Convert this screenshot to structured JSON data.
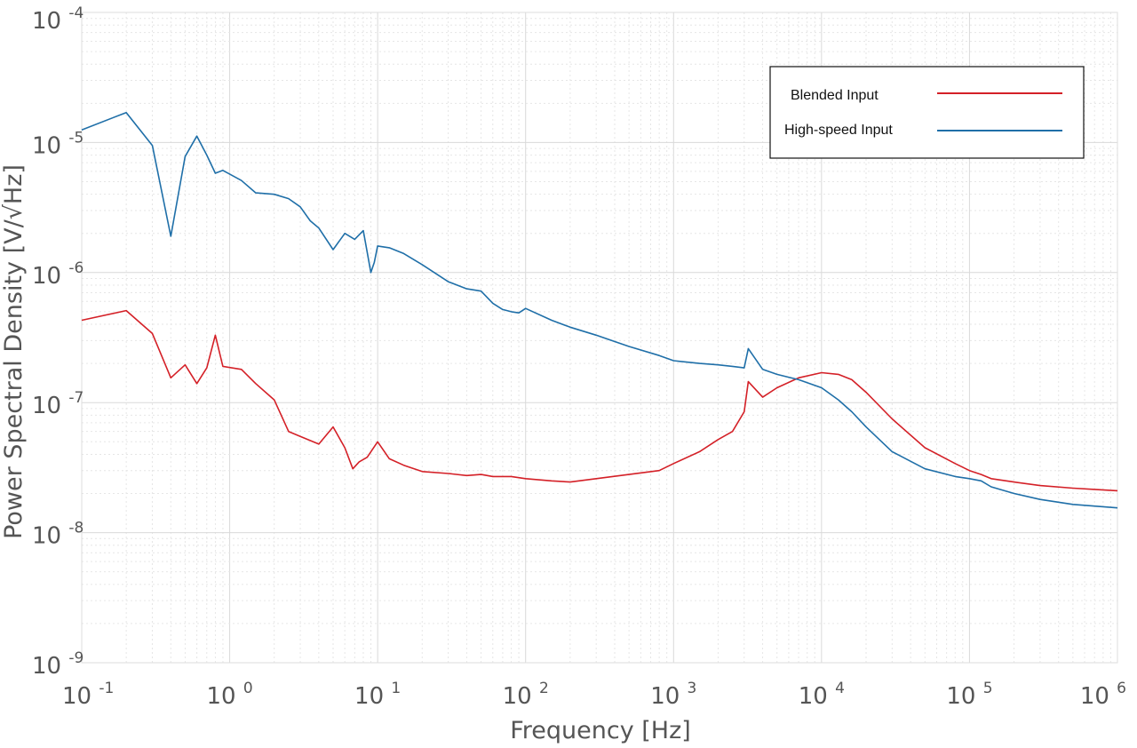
{
  "chart_data": {
    "type": "line",
    "title": "",
    "xlabel": "Frequency [Hz]",
    "ylabel": "Power Spectral Density [V/√Hz]",
    "xscale": "log",
    "yscale": "log",
    "xlim": [
      0.1,
      1000000
    ],
    "ylim": [
      1e-09,
      0.0001
    ],
    "grid": true,
    "legend_position": "top-right",
    "x_ticks": [
      {
        "base": "10",
        "exp": "-1"
      },
      {
        "base": "10",
        "exp": "0"
      },
      {
        "base": "10",
        "exp": "1"
      },
      {
        "base": "10",
        "exp": "2"
      },
      {
        "base": "10",
        "exp": "3"
      },
      {
        "base": "10",
        "exp": "4"
      },
      {
        "base": "10",
        "exp": "5"
      },
      {
        "base": "10",
        "exp": "6"
      }
    ],
    "y_ticks": [
      {
        "base": "10",
        "exp": "-9"
      },
      {
        "base": "10",
        "exp": "-8"
      },
      {
        "base": "10",
        "exp": "-7"
      },
      {
        "base": "10",
        "exp": "-6"
      },
      {
        "base": "10",
        "exp": "-5"
      },
      {
        "base": "10",
        "exp": "-4"
      }
    ],
    "series": [
      {
        "name": "Blended Input",
        "color": "#d42027",
        "x": [
          0.1,
          0.2,
          0.3,
          0.4,
          0.5,
          0.6,
          0.7,
          0.8,
          0.9,
          1.2,
          1.5,
          2.0,
          2.5,
          3.0,
          4.0,
          5.0,
          6.0,
          6.8,
          7.5,
          8.5,
          10,
          12,
          15,
          20,
          30,
          40,
          50,
          60,
          80,
          100,
          150,
          200,
          300,
          500,
          800,
          1000,
          1500,
          2000,
          2500,
          3000,
          3200,
          4000,
          5000,
          7000,
          10000,
          13000,
          16000,
          20000,
          30000,
          50000,
          80000,
          100000,
          120000,
          140000,
          200000,
          300000,
          500000,
          700000,
          1000000
        ],
        "values": [
          4.3e-07,
          5.1e-07,
          3.4e-07,
          1.55e-07,
          1.95e-07,
          1.4e-07,
          1.85e-07,
          3.3e-07,
          1.9e-07,
          1.8e-07,
          1.4e-07,
          1.05e-07,
          6e-08,
          5.5e-08,
          4.8e-08,
          6.5e-08,
          4.5e-08,
          3.1e-08,
          3.5e-08,
          3.8e-08,
          5e-08,
          3.7e-08,
          3.3e-08,
          2.95e-08,
          2.85e-08,
          2.75e-08,
          2.8e-08,
          2.7e-08,
          2.7e-08,
          2.6e-08,
          2.5e-08,
          2.45e-08,
          2.6e-08,
          2.8e-08,
          3e-08,
          3.4e-08,
          4.2e-08,
          5.2e-08,
          6e-08,
          8.5e-08,
          1.45e-07,
          1.1e-07,
          1.3e-07,
          1.55e-07,
          1.7e-07,
          1.65e-07,
          1.5e-07,
          1.2e-07,
          7.5e-08,
          4.5e-08,
          3.4e-08,
          3e-08,
          2.8e-08,
          2.6e-08,
          2.45e-08,
          2.3e-08,
          2.2e-08,
          2.15e-08,
          2.1e-08
        ]
      },
      {
        "name": "High-speed Input",
        "color": "#1f6fa8",
        "x": [
          0.1,
          0.2,
          0.3,
          0.4,
          0.5,
          0.6,
          0.7,
          0.8,
          0.9,
          1.2,
          1.5,
          2.0,
          2.5,
          3.0,
          3.5,
          4.0,
          5.0,
          6.0,
          7.0,
          8.0,
          9.0,
          9.5,
          10,
          12,
          15,
          20,
          30,
          40,
          50,
          60,
          70,
          80,
          90,
          100,
          150,
          200,
          300,
          500,
          800,
          1000,
          1500,
          2000,
          2500,
          3000,
          3200,
          4000,
          5000,
          7000,
          10000,
          13000,
          16000,
          20000,
          30000,
          50000,
          80000,
          100000,
          120000,
          140000,
          200000,
          300000,
          500000,
          700000,
          1000000
        ],
        "values": [
          1.25e-05,
          1.7e-05,
          9.5e-06,
          1.9e-06,
          7.8e-06,
          1.12e-05,
          8e-06,
          5.8e-06,
          6.1e-06,
          5.1e-06,
          4.1e-06,
          4e-06,
          3.7e-06,
          3.2e-06,
          2.5e-06,
          2.2e-06,
          1.5e-06,
          2e-06,
          1.8e-06,
          2.1e-06,
          1e-06,
          1.2e-06,
          1.6e-06,
          1.55e-06,
          1.4e-06,
          1.15e-06,
          8.5e-07,
          7.5e-07,
          7.2e-07,
          5.8e-07,
          5.2e-07,
          5e-07,
          4.9e-07,
          5.3e-07,
          4.3e-07,
          3.8e-07,
          3.3e-07,
          2.7e-07,
          2.3e-07,
          2.1e-07,
          2e-07,
          1.95e-07,
          1.9e-07,
          1.85e-07,
          2.6e-07,
          1.8e-07,
          1.65e-07,
          1.5e-07,
          1.3e-07,
          1.05e-07,
          8.5e-08,
          6.5e-08,
          4.2e-08,
          3.1e-08,
          2.7e-08,
          2.6e-08,
          2.5e-08,
          2.25e-08,
          2e-08,
          1.8e-08,
          1.65e-08,
          1.6e-08,
          1.55e-08
        ]
      }
    ]
  },
  "legend": {
    "entries": [
      "Blended Input",
      "High-speed Input"
    ]
  }
}
